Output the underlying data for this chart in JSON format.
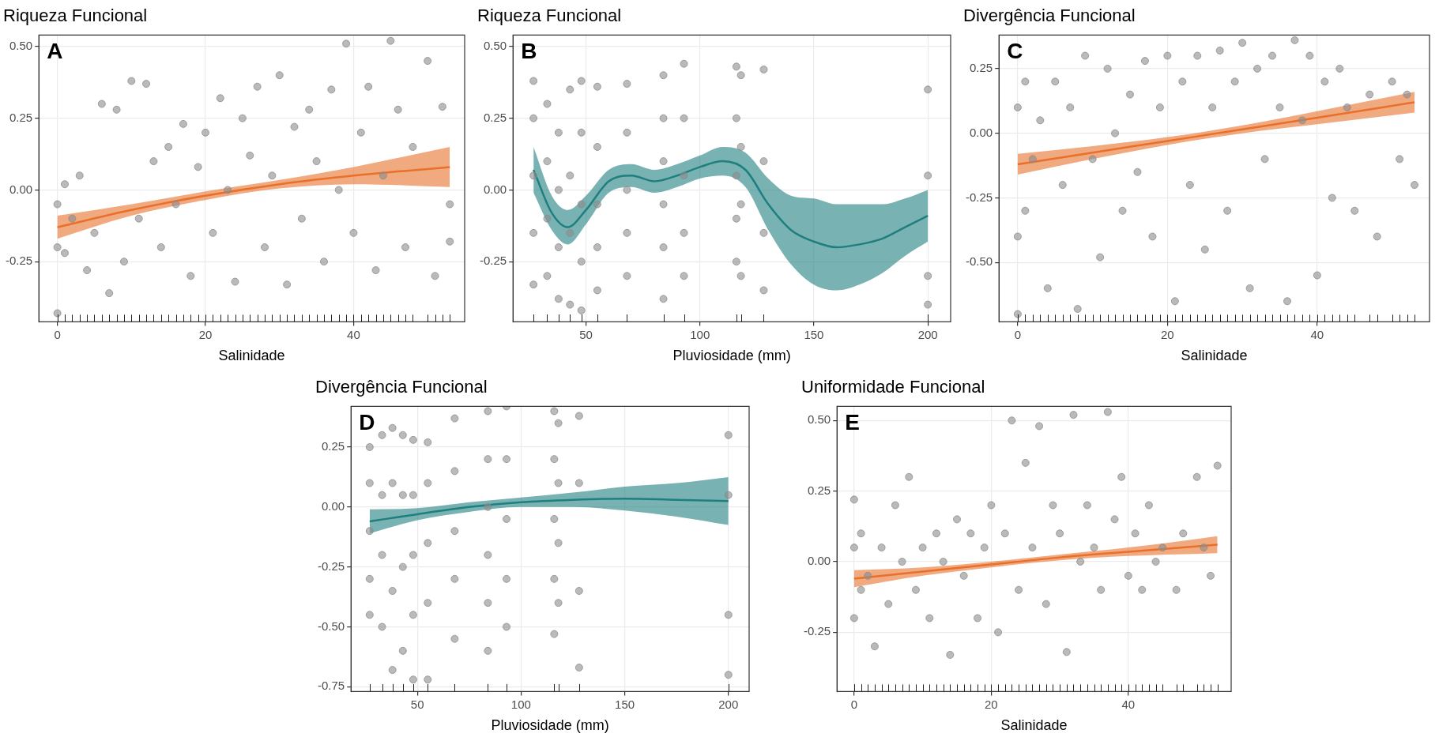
{
  "chart_data": [
    {
      "type": "scatter",
      "title": "Riqueza Funcional",
      "xlabel": "Salinidade",
      "annotations": [
        "A"
      ],
      "xlim": [
        -2.5,
        55
      ],
      "xticks": [
        0,
        20,
        40
      ],
      "ylim": [
        -0.46,
        0.54
      ],
      "yticks": [
        {
          "value": -0.25,
          "label": "-0.25"
        },
        {
          "value": 0,
          "label": "0.00"
        },
        {
          "value": 0.25,
          "label": "0.25"
        },
        {
          "value": 0.5,
          "label": "0.50"
        }
      ],
      "grid": true,
      "series": [
        {
          "type": "scatter",
          "marker": "circle",
          "color": "#8c8c8c",
          "x": [
            0,
            0,
            0,
            1,
            1,
            2,
            3,
            4,
            5,
            6,
            7,
            8,
            9,
            10,
            11,
            12,
            13,
            14,
            15,
            16,
            17,
            18,
            19,
            20,
            21,
            22,
            23,
            24,
            25,
            26,
            27,
            28,
            29,
            30,
            31,
            32,
            33,
            34,
            35,
            36,
            37,
            38,
            39,
            40,
            41,
            42,
            43,
            44,
            45,
            46,
            47,
            48,
            50,
            51,
            52,
            53,
            53
          ],
          "values": [
            -0.43,
            -0.2,
            -0.05,
            -0.22,
            0.02,
            -0.1,
            0.05,
            -0.28,
            -0.15,
            0.3,
            -0.36,
            0.28,
            -0.25,
            0.38,
            -0.1,
            0.37,
            0.1,
            -0.2,
            0.15,
            -0.05,
            0.23,
            -0.3,
            0.08,
            0.2,
            -0.15,
            0.32,
            0,
            -0.32,
            0.25,
            0.12,
            0.36,
            -0.2,
            0.05,
            0.4,
            -0.33,
            0.22,
            -0.1,
            0.28,
            0.1,
            -0.25,
            0.35,
            0,
            0.51,
            -0.15,
            0.2,
            0.36,
            -0.28,
            0.05,
            0.52,
            0.28,
            -0.2,
            0.15,
            0.45,
            -0.3,
            0.29,
            -0.05,
            -0.18
          ]
        },
        {
          "type": "line",
          "marker": "none",
          "color": "#e8702a",
          "x": [
            0,
            10,
            20,
            30,
            40,
            53
          ],
          "values": [
            -0.13,
            -0.07,
            -0.02,
            0.02,
            0.05,
            0.08
          ],
          "lower": [
            -0.17,
            -0.09,
            -0.035,
            0.005,
            0.02,
            0.01
          ],
          "upper": [
            -0.09,
            -0.05,
            -0.005,
            0.035,
            0.08,
            0.15
          ]
        }
      ]
    },
    {
      "type": "scatter",
      "title": "Riqueza Funcional",
      "xlabel": "Pluviosidade (mm)",
      "annotations": [
        "B"
      ],
      "xlim": [
        18,
        210
      ],
      "xticks": [
        50,
        100,
        150,
        200
      ],
      "ylim": [
        -0.46,
        0.54
      ],
      "yticks": [
        {
          "value": -0.25,
          "label": "-0.25"
        },
        {
          "value": 0,
          "label": "0.00"
        },
        {
          "value": 0.25,
          "label": "0.25"
        },
        {
          "value": 0.5,
          "label": "0.50"
        }
      ],
      "grid": true,
      "series": [
        {
          "type": "scatter",
          "marker": "circle",
          "color": "#8c8c8c",
          "x": [
            27,
            27,
            27,
            27,
            27,
            33,
            33,
            33,
            33,
            38,
            38,
            38,
            38,
            43,
            43,
            43,
            43,
            48,
            48,
            48,
            48,
            48,
            55,
            55,
            55,
            55,
            55,
            68,
            68,
            68,
            68,
            68,
            84,
            84,
            84,
            84,
            84,
            84,
            93,
            93,
            93,
            93,
            93,
            116,
            116,
            116,
            116,
            116,
            118,
            118,
            118,
            118,
            128,
            128,
            128,
            128,
            200,
            200,
            200,
            200
          ],
          "values": [
            0.38,
            0.25,
            0.05,
            -0.15,
            -0.33,
            0.3,
            0.1,
            -0.1,
            -0.3,
            0.2,
            0,
            -0.2,
            -0.38,
            0.35,
            0.05,
            -0.15,
            -0.4,
            0.38,
            0.2,
            -0.05,
            -0.25,
            -0.42,
            0.36,
            0.15,
            -0.05,
            -0.2,
            -0.35,
            0.37,
            0.2,
            0,
            -0.15,
            -0.3,
            0.4,
            0.25,
            0.1,
            -0.05,
            -0.2,
            -0.38,
            0.44,
            0.25,
            0.05,
            -0.15,
            -0.3,
            0.43,
            0.25,
            0.05,
            -0.1,
            -0.25,
            0.4,
            0.15,
            -0.05,
            -0.3,
            0.42,
            0.1,
            -0.15,
            -0.35,
            0.35,
            0.05,
            -0.3,
            -0.4
          ]
        },
        {
          "type": "line",
          "marker": "none",
          "color": "#1f7f7f",
          "x": [
            27,
            35,
            42,
            50,
            60,
            70,
            80,
            90,
            100,
            110,
            120,
            130,
            140,
            150,
            160,
            170,
            180,
            190,
            200
          ],
          "values": [
            0.07,
            -0.08,
            -0.13,
            -0.07,
            0.03,
            0.05,
            0.03,
            0.05,
            0.08,
            0.1,
            0.07,
            -0.05,
            -0.14,
            -0.18,
            -0.2,
            -0.19,
            -0.17,
            -0.13,
            -0.09
          ],
          "lower": [
            -0.01,
            -0.14,
            -0.19,
            -0.12,
            -0.01,
            0.01,
            -0.01,
            0.01,
            0.04,
            0.05,
            0.01,
            -0.14,
            -0.26,
            -0.33,
            -0.35,
            -0.33,
            -0.29,
            -0.23,
            -0.18
          ],
          "upper": [
            0.15,
            -0.02,
            -0.07,
            -0.02,
            0.07,
            0.09,
            0.07,
            0.09,
            0.12,
            0.15,
            0.13,
            0.04,
            -0.02,
            -0.03,
            -0.05,
            -0.05,
            -0.05,
            -0.03,
            0
          ]
        }
      ]
    },
    {
      "type": "scatter",
      "title": "Divergência Funcional",
      "xlabel": "Salinidade",
      "annotations": [
        "C"
      ],
      "xlim": [
        -2.5,
        55
      ],
      "xticks": [
        0,
        20,
        40
      ],
      "ylim": [
        -0.73,
        0.38
      ],
      "yticks": [
        {
          "value": -0.5,
          "label": "-0.50"
        },
        {
          "value": -0.25,
          "label": "-0.25"
        },
        {
          "value": 0,
          "label": "0.00"
        },
        {
          "value": 0.25,
          "label": "0.25"
        }
      ],
      "grid": true,
      "series": [
        {
          "type": "scatter",
          "marker": "circle",
          "color": "#8c8c8c",
          "x": [
            0,
            0,
            0,
            1,
            1,
            2,
            3,
            4,
            5,
            6,
            7,
            8,
            9,
            10,
            11,
            12,
            13,
            14,
            15,
            16,
            17,
            18,
            19,
            20,
            21,
            22,
            23,
            24,
            25,
            26,
            27,
            28,
            29,
            30,
            31,
            32,
            33,
            34,
            35,
            36,
            37,
            38,
            39,
            40,
            41,
            42,
            43,
            44,
            45,
            47,
            48,
            50,
            51,
            52,
            53
          ],
          "values": [
            -0.7,
            -0.4,
            0.1,
            -0.3,
            0.2,
            -0.1,
            0.05,
            -0.6,
            0.2,
            -0.2,
            0.1,
            -0.68,
            0.3,
            -0.1,
            -0.48,
            0.25,
            0,
            -0.3,
            0.15,
            -0.15,
            0.28,
            -0.4,
            0.1,
            0.3,
            -0.65,
            0.2,
            -0.2,
            0.3,
            -0.45,
            0.1,
            0.32,
            -0.3,
            0.2,
            0.35,
            -0.6,
            0.25,
            -0.1,
            0.3,
            0.1,
            -0.65,
            0.36,
            0.05,
            0.3,
            -0.55,
            0.2,
            -0.25,
            0.25,
            0.1,
            -0.3,
            0.15,
            -0.4,
            0.2,
            -0.1,
            0.15,
            -0.2
          ]
        },
        {
          "type": "line",
          "marker": "none",
          "color": "#e8702a",
          "x": [
            0,
            10,
            20,
            30,
            40,
            53
          ],
          "values": [
            -0.12,
            -0.075,
            -0.03,
            0.015,
            0.06,
            0.12
          ],
          "lower": [
            -0.16,
            -0.1,
            -0.045,
            0,
            0.035,
            0.08
          ],
          "upper": [
            -0.08,
            -0.05,
            -0.015,
            0.03,
            0.085,
            0.16
          ]
        }
      ]
    },
    {
      "type": "scatter",
      "title": "Divergência Funcional",
      "xlabel": "Pluviosidade (mm)",
      "annotations": [
        "D"
      ],
      "xlim": [
        18,
        210
      ],
      "xticks": [
        50,
        100,
        150,
        200
      ],
      "ylim": [
        -0.77,
        0.42
      ],
      "yticks": [
        {
          "value": -0.75,
          "label": "-0.75"
        },
        {
          "value": -0.5,
          "label": "-0.50"
        },
        {
          "value": -0.25,
          "label": "-0.25"
        },
        {
          "value": 0,
          "label": "0.00"
        },
        {
          "value": 0.25,
          "label": "0.25"
        }
      ],
      "grid": true,
      "series": [
        {
          "type": "scatter",
          "marker": "circle",
          "color": "#8c8c8c",
          "x": [
            27,
            27,
            27,
            27,
            27,
            33,
            33,
            33,
            33,
            38,
            38,
            38,
            38,
            43,
            43,
            43,
            43,
            48,
            48,
            48,
            48,
            48,
            55,
            55,
            55,
            55,
            55,
            68,
            68,
            68,
            68,
            68,
            84,
            84,
            84,
            84,
            84,
            84,
            93,
            93,
            93,
            93,
            93,
            116,
            116,
            116,
            116,
            116,
            118,
            118,
            118,
            118,
            128,
            128,
            128,
            128,
            200,
            200,
            200,
            200
          ],
          "values": [
            0.25,
            0.1,
            -0.1,
            -0.3,
            -0.45,
            0.3,
            0.05,
            -0.2,
            -0.5,
            0.33,
            0.1,
            -0.35,
            -0.68,
            0.3,
            0.05,
            -0.25,
            -0.6,
            0.28,
            0.05,
            -0.2,
            -0.45,
            -0.72,
            0.27,
            0.1,
            -0.15,
            -0.4,
            -0.72,
            0.37,
            0.15,
            -0.1,
            -0.3,
            -0.55,
            0.4,
            0.2,
            0,
            -0.2,
            -0.4,
            -0.6,
            0.42,
            0.2,
            -0.05,
            -0.3,
            -0.5,
            0.4,
            0.2,
            -0.05,
            -0.3,
            -0.53,
            0.35,
            0.1,
            -0.15,
            -0.4,
            0.38,
            0.1,
            -0.35,
            -0.67,
            0.3,
            0.05,
            -0.45,
            -0.7
          ]
        },
        {
          "type": "line",
          "marker": "none",
          "color": "#1f7f7f",
          "x": [
            27,
            50,
            75,
            100,
            125,
            150,
            175,
            200
          ],
          "values": [
            -0.06,
            -0.03,
            0,
            0.02,
            0.03,
            0.035,
            0.03,
            0.025
          ],
          "lower": [
            -0.11,
            -0.055,
            -0.02,
            0,
            0,
            -0.015,
            -0.04,
            -0.075
          ],
          "upper": [
            -0.01,
            -0.005,
            0.02,
            0.04,
            0.06,
            0.085,
            0.1,
            0.125
          ]
        }
      ]
    },
    {
      "type": "scatter",
      "title": "Uniformidade Funcional",
      "xlabel": "Salinidade",
      "annotations": [
        "E"
      ],
      "xlim": [
        -2.5,
        55
      ],
      "xticks": [
        0,
        20,
        40
      ],
      "ylim": [
        -0.46,
        0.55
      ],
      "yticks": [
        {
          "value": -0.25,
          "label": "-0.25"
        },
        {
          "value": 0,
          "label": "0.00"
        },
        {
          "value": 0.25,
          "label": "0.25"
        },
        {
          "value": 0.5,
          "label": "0.50"
        }
      ],
      "grid": true,
      "series": [
        {
          "type": "scatter",
          "marker": "circle",
          "color": "#8c8c8c",
          "x": [
            0,
            0,
            0,
            1,
            1,
            2,
            3,
            4,
            5,
            6,
            7,
            8,
            9,
            10,
            11,
            12,
            13,
            14,
            15,
            16,
            17,
            18,
            19,
            20,
            21,
            22,
            23,
            24,
            25,
            26,
            27,
            28,
            29,
            30,
            31,
            32,
            33,
            34,
            35,
            36,
            37,
            38,
            39,
            40,
            41,
            42,
            43,
            44,
            45,
            47,
            48,
            50,
            51,
            52,
            53
          ],
          "values": [
            0.22,
            -0.2,
            0.05,
            0.1,
            -0.1,
            -0.05,
            -0.3,
            0.05,
            -0.15,
            0.2,
            0,
            0.3,
            -0.1,
            0.05,
            -0.2,
            0.1,
            0,
            -0.33,
            0.15,
            -0.05,
            0.1,
            -0.2,
            0.05,
            0.2,
            -0.25,
            0.1,
            0.5,
            -0.1,
            0.35,
            0.05,
            0.48,
            -0.15,
            0.2,
            0.1,
            -0.32,
            0.52,
            0,
            0.2,
            0.05,
            -0.1,
            0.53,
            0.15,
            0.3,
            -0.05,
            0.1,
            -0.1,
            0.2,
            0,
            0.05,
            -0.1,
            0.1,
            0.3,
            0.05,
            -0.05,
            0.34
          ]
        },
        {
          "type": "line",
          "marker": "none",
          "color": "#e8702a",
          "x": [
            0,
            10,
            20,
            30,
            40,
            53
          ],
          "values": [
            -0.06,
            -0.035,
            -0.01,
            0.015,
            0.035,
            0.06
          ],
          "lower": [
            -0.09,
            -0.05,
            -0.02,
            0.005,
            0.02,
            0.03
          ],
          "upper": [
            -0.03,
            -0.02,
            0,
            0.025,
            0.05,
            0.09
          ]
        }
      ]
    }
  ]
}
